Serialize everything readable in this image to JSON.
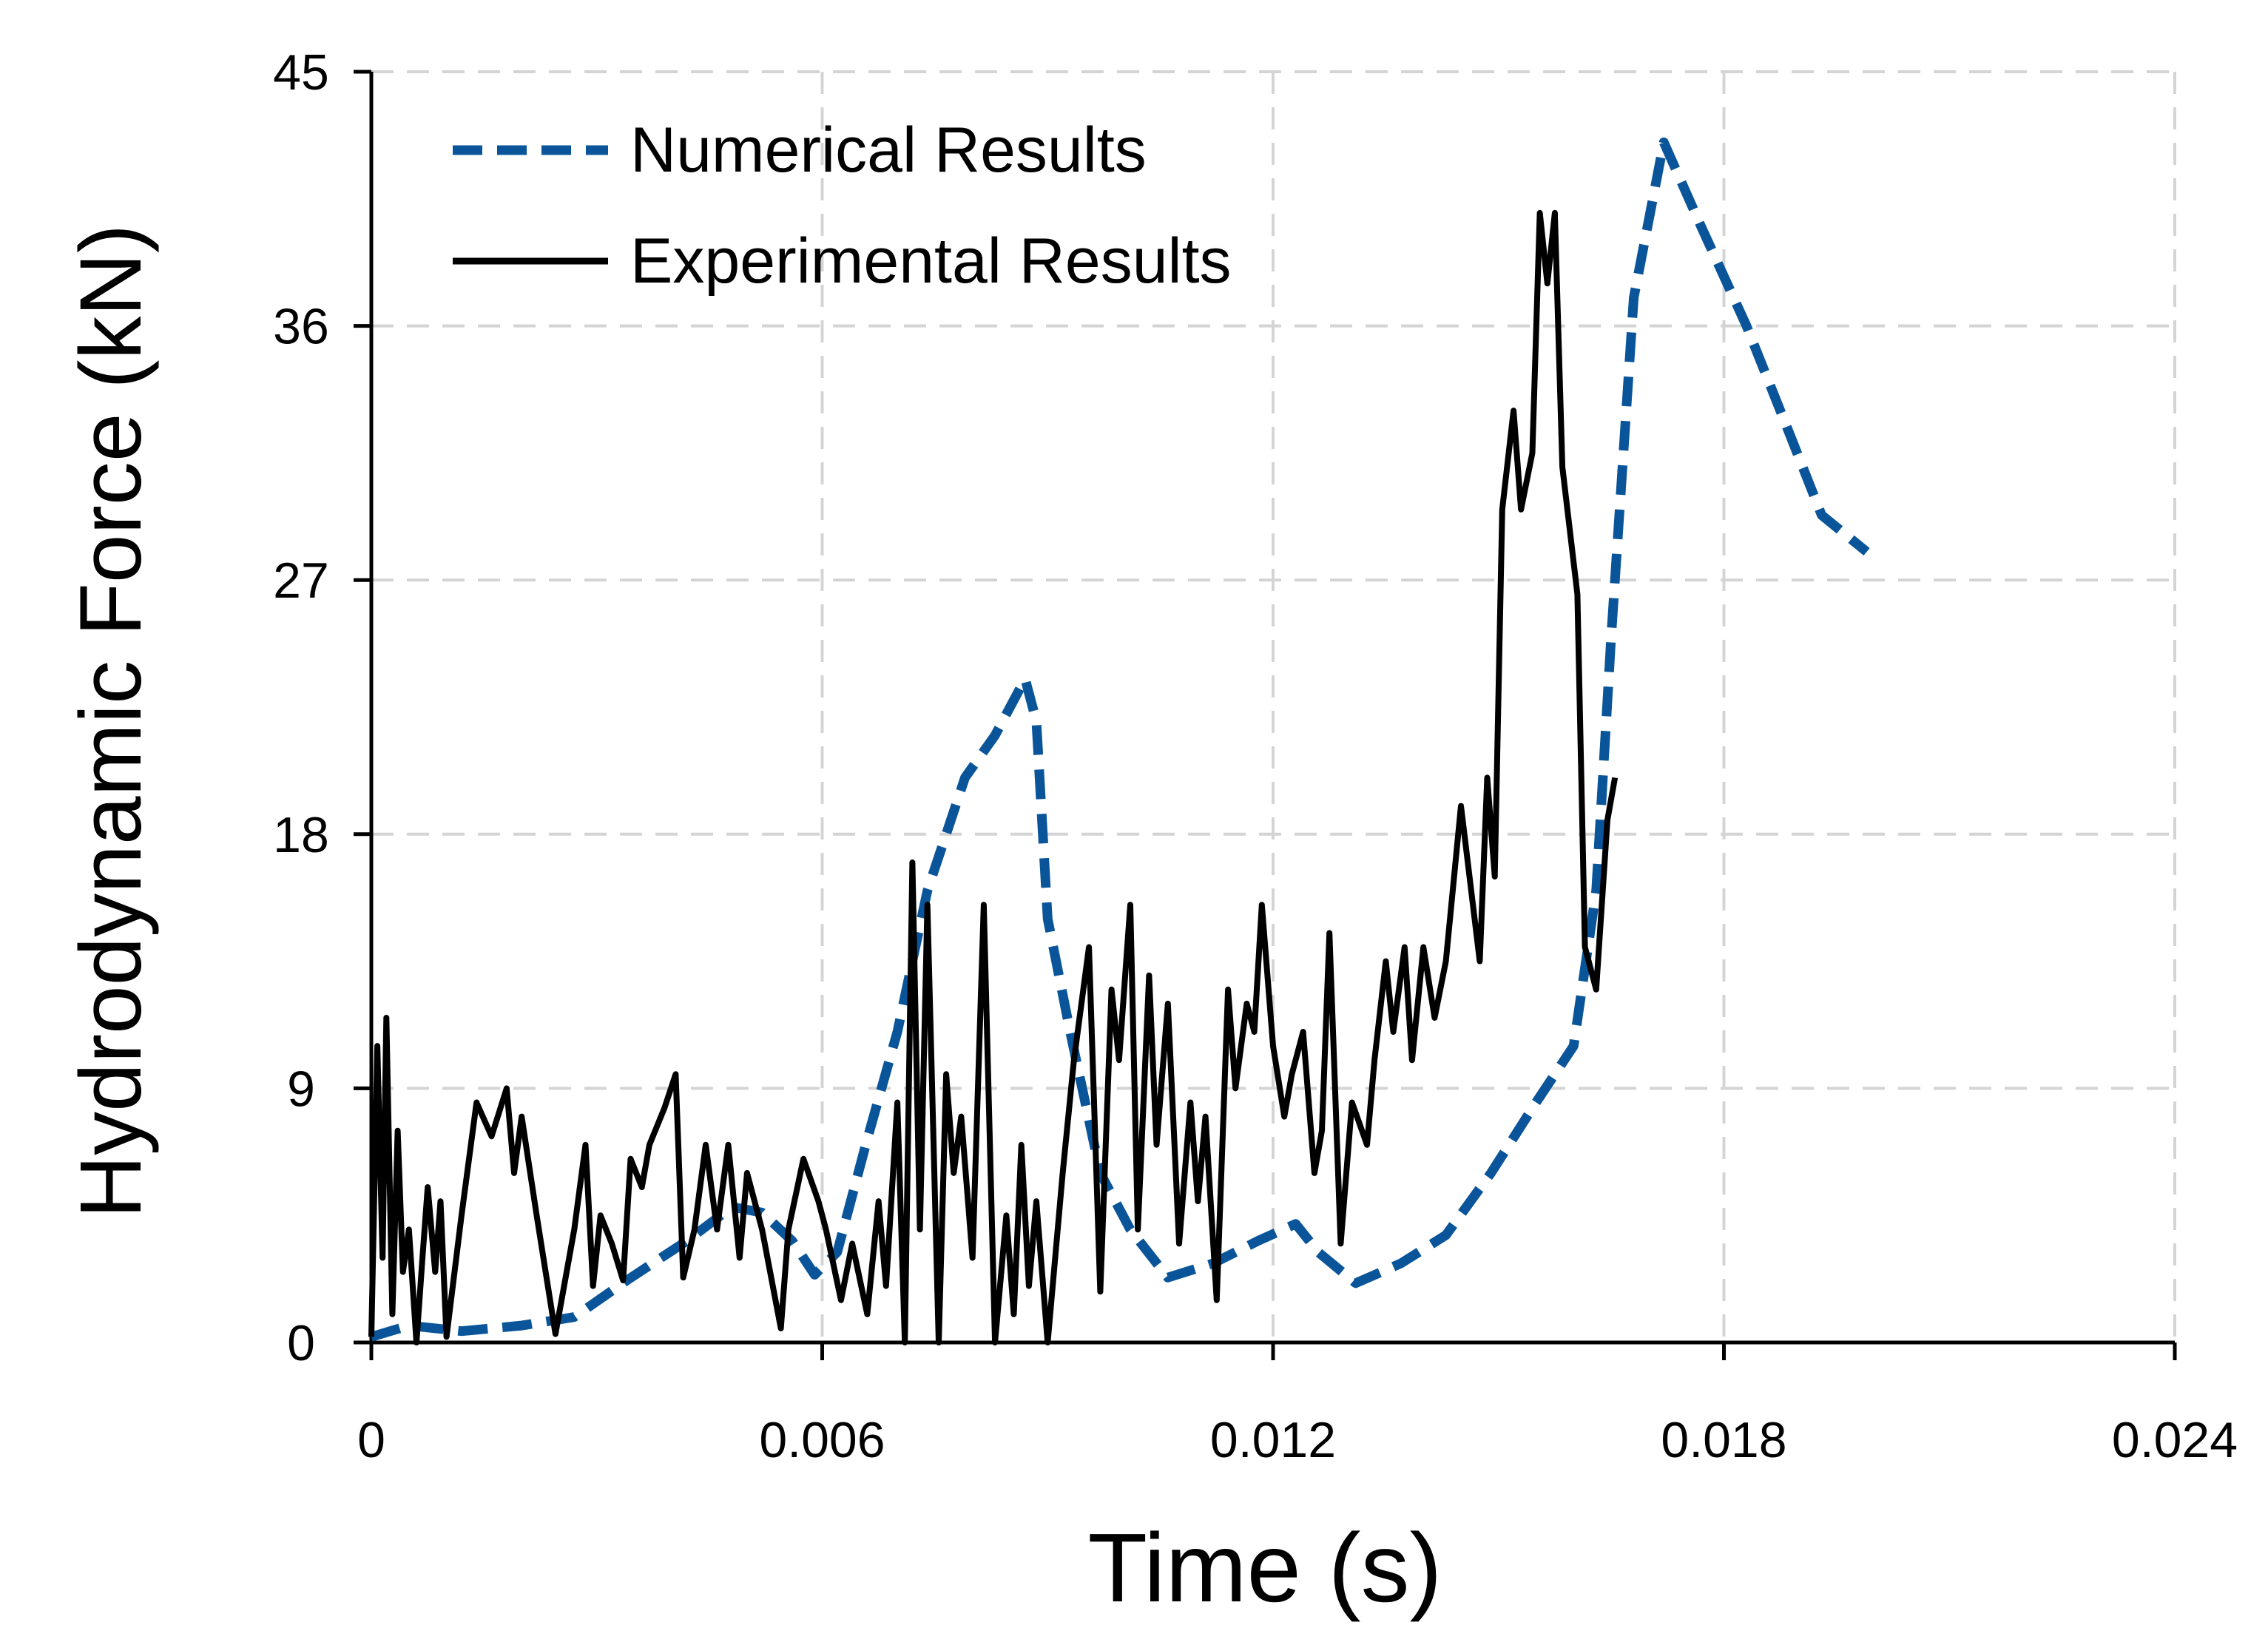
{
  "chart_data": {
    "type": "line",
    "title": "",
    "xlabel": "Time (s)",
    "ylabel": "Hydrodynamic Force (kN)",
    "xlim": [
      0,
      0.024
    ],
    "ylim": [
      0,
      45
    ],
    "grid": true,
    "legend_position": "top-left",
    "x_ticks": [
      0,
      0.006,
      0.012,
      0.018,
      0.024
    ],
    "x_tick_labels": [
      "0",
      "0.006",
      "0.012",
      "0.018",
      "0.024"
    ],
    "y_ticks": [
      0,
      9,
      18,
      27,
      36,
      45
    ],
    "y_tick_labels": [
      "0",
      "9",
      "18",
      "27",
      "36",
      "45"
    ],
    "colors": {
      "numerical": "#0a5599",
      "experimental": "#000000",
      "grid": "#d4d4d4",
      "axis": "#000000"
    },
    "series": [
      {
        "name": "Numerical Results",
        "style": "dashed",
        "points": [
          [
            0.0,
            0.2
          ],
          [
            0.0005,
            0.6
          ],
          [
            0.0012,
            0.4
          ],
          [
            0.002,
            0.6
          ],
          [
            0.0027,
            0.9
          ],
          [
            0.0034,
            2.2
          ],
          [
            0.0042,
            3.6
          ],
          [
            0.0048,
            4.8
          ],
          [
            0.0052,
            4.6
          ],
          [
            0.0056,
            3.6
          ],
          [
            0.0059,
            2.4
          ],
          [
            0.0062,
            3.2
          ],
          [
            0.0066,
            7.2
          ],
          [
            0.007,
            11.0
          ],
          [
            0.0074,
            16.0
          ],
          [
            0.0079,
            20.0
          ],
          [
            0.0083,
            21.5
          ],
          [
            0.0087,
            23.5
          ],
          [
            0.00885,
            22.0
          ],
          [
            0.009,
            15.0
          ],
          [
            0.0093,
            11.0
          ],
          [
            0.0097,
            6.0
          ],
          [
            0.0101,
            4.0
          ],
          [
            0.0106,
            2.3
          ],
          [
            0.0112,
            2.8
          ],
          [
            0.0118,
            3.6
          ],
          [
            0.0123,
            4.2
          ],
          [
            0.0126,
            3.2
          ],
          [
            0.0131,
            2.1
          ],
          [
            0.0137,
            2.8
          ],
          [
            0.0143,
            3.8
          ],
          [
            0.0149,
            6.0
          ],
          [
            0.0155,
            8.5
          ],
          [
            0.016,
            10.5
          ],
          [
            0.0163,
            16.0
          ],
          [
            0.0165,
            25.0
          ],
          [
            0.0168,
            37.0
          ],
          [
            0.0172,
            42.5
          ],
          [
            0.0177,
            39.5
          ],
          [
            0.0183,
            36.0
          ],
          [
            0.0189,
            32.0
          ],
          [
            0.0193,
            29.3
          ],
          [
            0.0199,
            28.0
          ]
        ]
      },
      {
        "name": "Experimental Results",
        "style": "solid",
        "points": [
          [
            0.0,
            0.2
          ],
          [
            8e-05,
            10.5
          ],
          [
            0.00015,
            3.0
          ],
          [
            0.0002,
            11.5
          ],
          [
            0.00028,
            1.0
          ],
          [
            0.00035,
            7.5
          ],
          [
            0.00042,
            2.5
          ],
          [
            0.0005,
            4.0
          ],
          [
            0.0006,
            0.0
          ],
          [
            0.00068,
            3.0
          ],
          [
            0.00075,
            5.5
          ],
          [
            0.00085,
            2.5
          ],
          [
            0.00092,
            5.0
          ],
          [
            0.001,
            0.2
          ],
          [
            0.0012,
            4.5
          ],
          [
            0.0014,
            8.5
          ],
          [
            0.0016,
            7.3
          ],
          [
            0.0018,
            9.0
          ],
          [
            0.0019,
            6.0
          ],
          [
            0.002,
            8.0
          ],
          [
            0.0022,
            4.5
          ],
          [
            0.00245,
            0.3
          ],
          [
            0.0027,
            4.0
          ],
          [
            0.00285,
            7.0
          ],
          [
            0.00295,
            2.0
          ],
          [
            0.00305,
            4.5
          ],
          [
            0.0032,
            3.5
          ],
          [
            0.00335,
            2.2
          ],
          [
            0.00345,
            6.5
          ],
          [
            0.0036,
            5.5
          ],
          [
            0.0037,
            7.0
          ],
          [
            0.0039,
            8.3
          ],
          [
            0.00405,
            9.5
          ],
          [
            0.00415,
            2.3
          ],
          [
            0.0043,
            4.0
          ],
          [
            0.00445,
            7.0
          ],
          [
            0.0046,
            4.0
          ],
          [
            0.00475,
            7.0
          ],
          [
            0.0049,
            3.0
          ],
          [
            0.005,
            6.0
          ],
          [
            0.0052,
            4.0
          ],
          [
            0.00545,
            0.5
          ],
          [
            0.00555,
            4.0
          ],
          [
            0.00575,
            6.5
          ],
          [
            0.00595,
            5.0
          ],
          [
            0.00605,
            4.0
          ],
          [
            0.00625,
            1.5
          ],
          [
            0.0064,
            3.5
          ],
          [
            0.0066,
            1.0
          ],
          [
            0.00675,
            5.0
          ],
          [
            0.00685,
            2.0
          ],
          [
            0.007,
            8.5
          ],
          [
            0.0071,
            0.0
          ],
          [
            0.0072,
            17.0
          ],
          [
            0.0073,
            4.0
          ],
          [
            0.0074,
            15.5
          ],
          [
            0.00755,
            0.0
          ],
          [
            0.00765,
            9.5
          ],
          [
            0.00775,
            6.0
          ],
          [
            0.00785,
            8.0
          ],
          [
            0.008,
            3.0
          ],
          [
            0.00815,
            15.5
          ],
          [
            0.0083,
            0.0
          ],
          [
            0.00845,
            4.5
          ],
          [
            0.00855,
            1.0
          ],
          [
            0.00865,
            7.0
          ],
          [
            0.00875,
            2.0
          ],
          [
            0.00885,
            5.0
          ],
          [
            0.009,
            0.0
          ],
          [
            0.0092,
            6.0
          ],
          [
            0.00935,
            10.0
          ],
          [
            0.00955,
            14.0
          ],
          [
            0.0097,
            1.8
          ],
          [
            0.00985,
            12.5
          ],
          [
            0.00995,
            10.0
          ],
          [
            0.0101,
            15.5
          ],
          [
            0.0102,
            4.0
          ],
          [
            0.01035,
            13.0
          ],
          [
            0.01045,
            7.0
          ],
          [
            0.0106,
            12.0
          ],
          [
            0.01075,
            3.5
          ],
          [
            0.0109,
            8.5
          ],
          [
            0.011,
            5.0
          ],
          [
            0.0111,
            8.0
          ],
          [
            0.01125,
            1.5
          ],
          [
            0.0114,
            12.5
          ],
          [
            0.0115,
            9.0
          ],
          [
            0.01165,
            12.0
          ],
          [
            0.01175,
            11.0
          ],
          [
            0.01185,
            15.5
          ],
          [
            0.012,
            10.5
          ],
          [
            0.01215,
            8.0
          ],
          [
            0.01225,
            9.5
          ],
          [
            0.0124,
            11.0
          ],
          [
            0.01255,
            6.0
          ],
          [
            0.01265,
            7.5
          ],
          [
            0.01275,
            14.5
          ],
          [
            0.0129,
            3.5
          ],
          [
            0.01305,
            8.5
          ],
          [
            0.01325,
            7.0
          ],
          [
            0.01335,
            10.0
          ],
          [
            0.0135,
            13.5
          ],
          [
            0.0136,
            11.0
          ],
          [
            0.01375,
            14.0
          ],
          [
            0.01385,
            10.0
          ],
          [
            0.014,
            14.0
          ],
          [
            0.01415,
            11.5
          ],
          [
            0.0143,
            13.5
          ],
          [
            0.0145,
            19.0
          ],
          [
            0.01475,
            13.5
          ],
          [
            0.01485,
            20.0
          ],
          [
            0.01495,
            16.5
          ],
          [
            0.01505,
            29.5
          ],
          [
            0.0152,
            33.0
          ],
          [
            0.0153,
            29.5
          ],
          [
            0.01545,
            31.5
          ],
          [
            0.01555,
            40.0
          ],
          [
            0.01565,
            37.5
          ],
          [
            0.01575,
            40.0
          ],
          [
            0.01585,
            31.0
          ],
          [
            0.01605,
            26.5
          ],
          [
            0.01615,
            14.0
          ],
          [
            0.0163,
            12.5
          ],
          [
            0.01645,
            18.5
          ],
          [
            0.01655,
            20.0
          ]
        ]
      }
    ]
  }
}
